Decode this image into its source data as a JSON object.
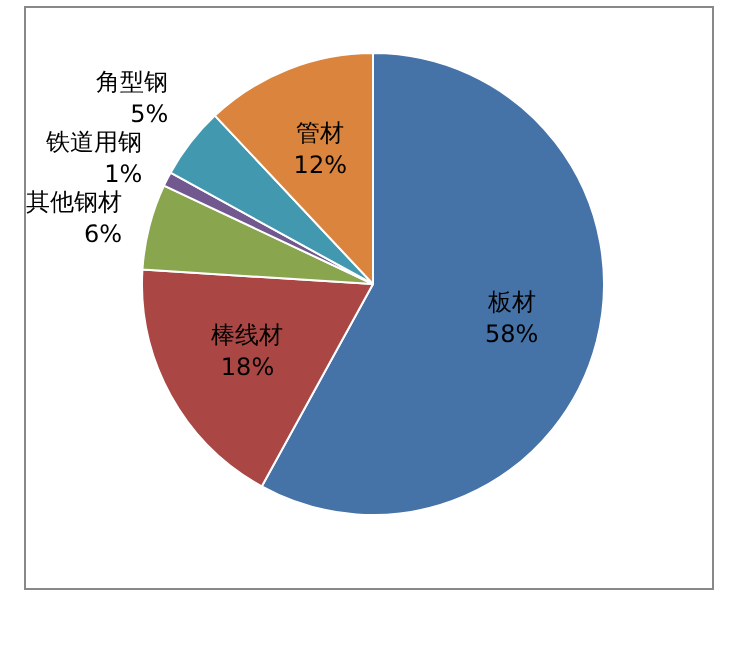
{
  "chart_data": {
    "type": "pie",
    "categories": [
      "板材",
      "棒线材",
      "其他钢材",
      "铁道用钢",
      "角型钢",
      "管材"
    ],
    "values": [
      58,
      18,
      6,
      1,
      5,
      12
    ],
    "colors": [
      "#4572a7",
      "#aa4643",
      "#89a54e",
      "#71588f",
      "#4198af",
      "#db843d"
    ],
    "value_labels": [
      "58%",
      "18%",
      "6%",
      "1%",
      "5%",
      "12%"
    ],
    "legend": false
  }
}
